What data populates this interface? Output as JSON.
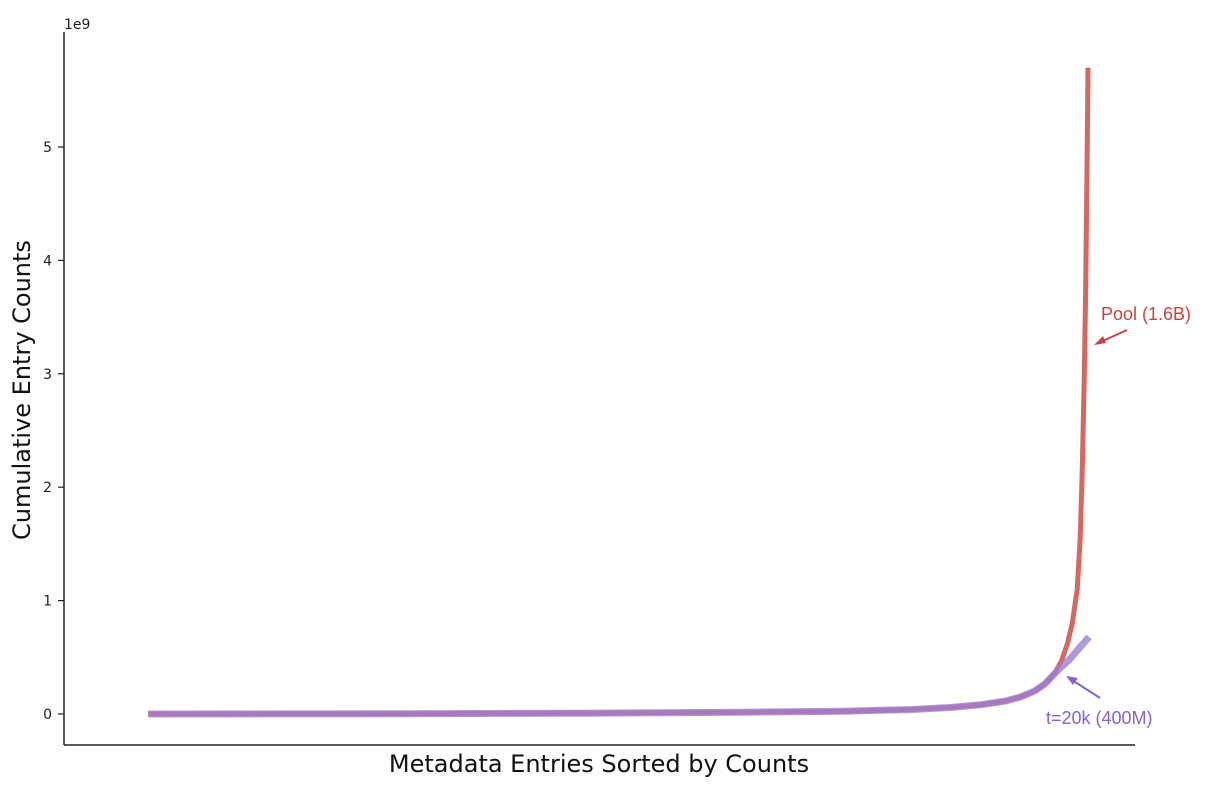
{
  "chart_data": {
    "type": "line",
    "title": "",
    "xlabel": "Metadata Entries Sorted by Counts",
    "ylabel": "Cumulative Entry Counts",
    "y_multiplier": "1e9",
    "ylim": [
      -0.28,
      5.95
    ],
    "xlim": [
      0,
      1
    ],
    "yticks": [
      0,
      1,
      2,
      3,
      4,
      5
    ],
    "yticks_labels": [
      "0",
      "1",
      "2",
      "3",
      "4",
      "5"
    ],
    "xticks_visible": false,
    "grid": false,
    "series": [
      {
        "color": "#d9665f",
        "x": [
          0.04,
          0.3,
          0.5,
          0.65,
          0.75,
          0.82,
          0.86,
          0.89,
          0.915,
          0.93,
          0.945,
          0.955,
          0.965,
          0.972,
          0.978,
          0.983,
          0.988,
          0.991,
          0.993,
          0.995,
          0.9965,
          0.998,
          0.999
        ],
        "y": [
          0.0,
          0.003,
          0.008,
          0.016,
          0.025,
          0.04,
          0.058,
          0.082,
          0.115,
          0.15,
          0.205,
          0.265,
          0.36,
          0.47,
          0.62,
          0.8,
          1.1,
          1.55,
          2.1,
          2.9,
          3.7,
          4.8,
          5.7
        ]
      },
      {
        "color": "#9b7fd4",
        "x": [
          0.04,
          0.3,
          0.5,
          0.65,
          0.75,
          0.82,
          0.86,
          0.89,
          0.915,
          0.93,
          0.945,
          0.955,
          0.962,
          0.97,
          0.98,
          0.99,
          1.0
        ],
        "y": [
          0.0,
          0.003,
          0.008,
          0.016,
          0.025,
          0.04,
          0.058,
          0.082,
          0.115,
          0.15,
          0.205,
          0.265,
          0.33,
          0.4,
          0.48,
          0.58,
          0.68
        ]
      }
    ],
    "annotations": [
      {
        "text": "Pool (1.6B)",
        "color": "#c9443e",
        "x": 1.0,
        "y": 3.28
      },
      {
        "text": "t=20k (400M)",
        "color": "#8a63cf",
        "x": 0.963,
        "y": 0.33
      }
    ]
  }
}
